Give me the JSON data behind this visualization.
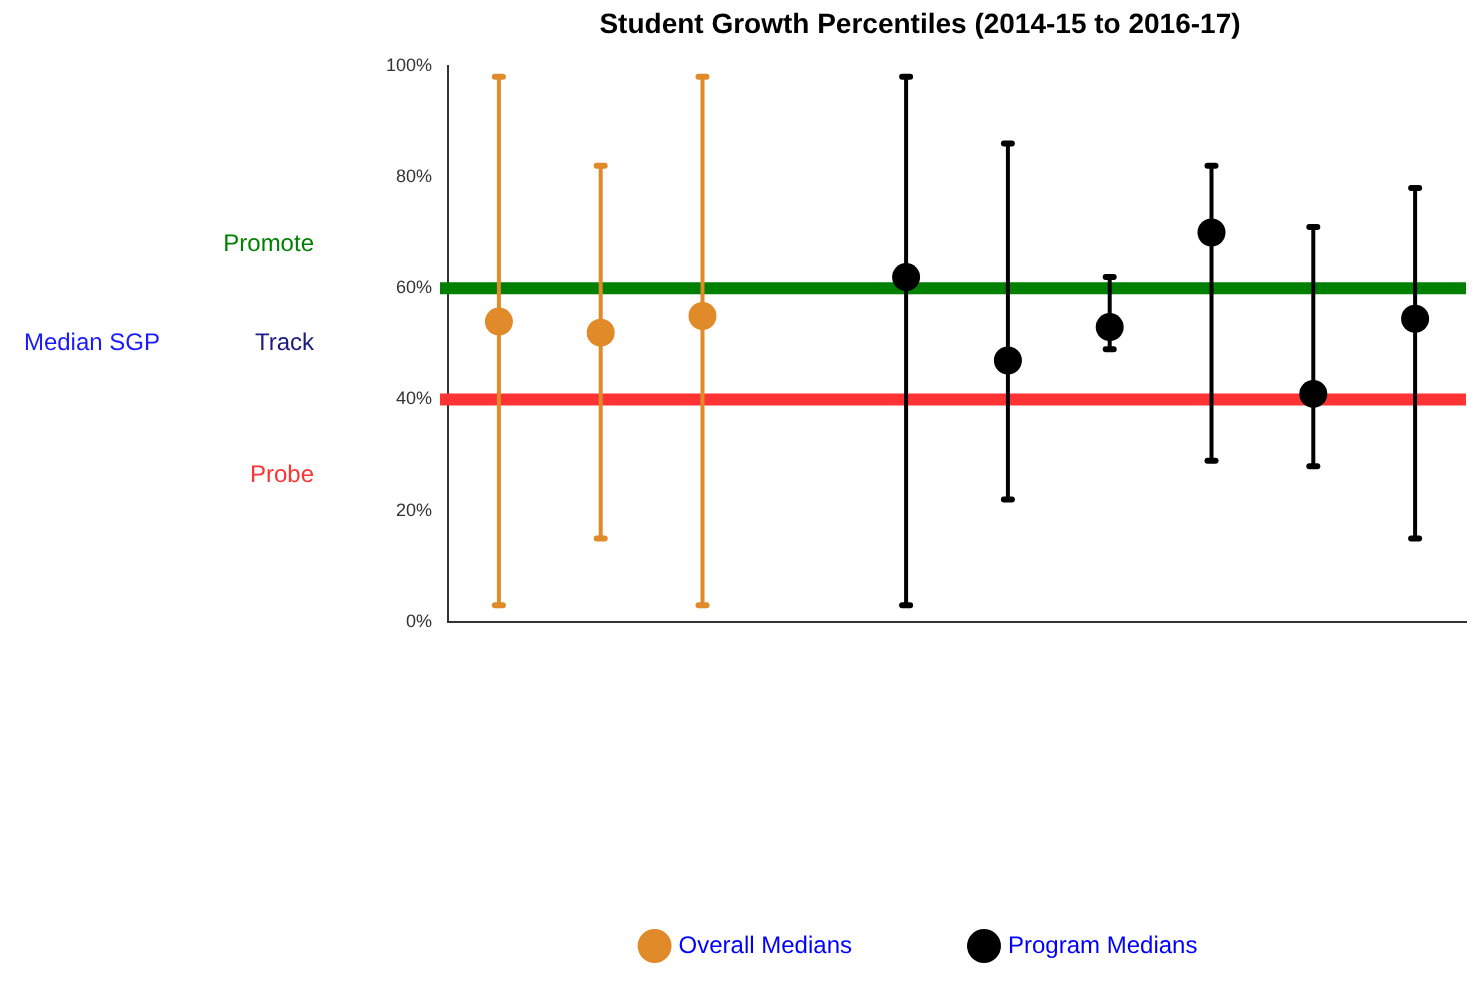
{
  "chart_data": {
    "type": "scatter",
    "title": "Student Growth Percentiles (2014-15 to 2016-17)",
    "categories": [
      null,
      null,
      null,
      null,
      null,
      null,
      null,
      null,
      null,
      null
    ],
    "series": [
      {
        "name": "Overall Medians",
        "color": "#e08a2a",
        "values": [
          54,
          52,
          55,
          null,
          null,
          null,
          null,
          null,
          null,
          null
        ],
        "errors": [
          [
            3,
            98
          ],
          [
            15,
            82
          ],
          [
            3,
            98
          ],
          null,
          null,
          null,
          null,
          null,
          null,
          null
        ]
      },
      {
        "name": "Program Medians",
        "color": "#000000",
        "values": [
          null,
          null,
          null,
          null,
          62,
          47,
          53,
          70,
          41,
          54.5
        ],
        "errors": [
          null,
          null,
          null,
          null,
          [
            3,
            98
          ],
          [
            22,
            86
          ],
          [
            49,
            62
          ],
          [
            29,
            82
          ],
          [
            28,
            71
          ],
          [
            15,
            78
          ]
        ]
      }
    ],
    "ylim": [
      0,
      100
    ],
    "yticks": [
      {
        "value": 0,
        "label": "0%"
      },
      {
        "value": 20,
        "label": "20%"
      },
      {
        "value": 40,
        "label": "40%"
      },
      {
        "value": 60,
        "label": "60%"
      },
      {
        "value": 80,
        "label": "80%"
      },
      {
        "value": 100,
        "label": "100%"
      }
    ],
    "ref_lines": [
      {
        "axis": "y",
        "value": 60,
        "color": "#008000"
      },
      {
        "axis": "y",
        "value": 40,
        "color": "#ff3333"
      }
    ],
    "annotations": [
      "Promote",
      "Median SGP",
      "Track",
      "Probe"
    ],
    "tick_labels": "y",
    "grid": false,
    "legend": "bottom",
    "marker": "circle"
  }
}
